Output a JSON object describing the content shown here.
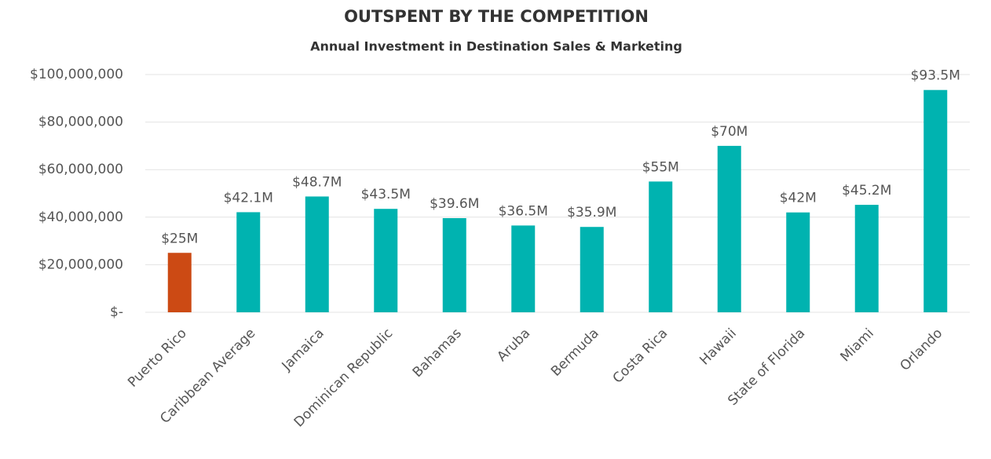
{
  "chart_data": {
    "type": "bar",
    "title": "OUTSPENT BY THE COMPETITION",
    "subtitle": "Annual Investment in Destination Sales & Marketing",
    "categories": [
      "Puerto Rico",
      "Caribbean Average",
      "Jamaica",
      "Dominican Republic",
      "Bahamas",
      "Aruba",
      "Bermuda",
      "Costa Rica",
      "Hawaii",
      "State of Florida",
      "Miami",
      "Orlando"
    ],
    "values": [
      25000000,
      42100000,
      48700000,
      43500000,
      39600000,
      36500000,
      35900000,
      55000000,
      70000000,
      42000000,
      45200000,
      93500000
    ],
    "value_labels": [
      "$25M",
      "$42.1M",
      "$48.7M",
      "$43.5M",
      "$39.6M",
      "$36.5M",
      "$35.9M",
      "$55M",
      "$70M",
      "$42M",
      "$45.2M",
      "$93.5M"
    ],
    "colors": [
      "#cc4a14",
      "#00b3b0",
      "#00b3b0",
      "#00b3b0",
      "#00b3b0",
      "#00b3b0",
      "#00b3b0",
      "#00b3b0",
      "#00b3b0",
      "#00b3b0",
      "#00b3b0",
      "#00b3b0"
    ],
    "ylim": [
      0,
      100000000
    ],
    "yticks": [
      {
        "value": 0,
        "label": "$-"
      },
      {
        "value": 20000000,
        "label": "$20,000,000"
      },
      {
        "value": 40000000,
        "label": "$40,000,000"
      },
      {
        "value": 60000000,
        "label": "$60,000,000"
      },
      {
        "value": 80000000,
        "label": "$80,000,000"
      },
      {
        "value": 100000000,
        "label": "$100,000,000"
      }
    ],
    "grid": true
  }
}
